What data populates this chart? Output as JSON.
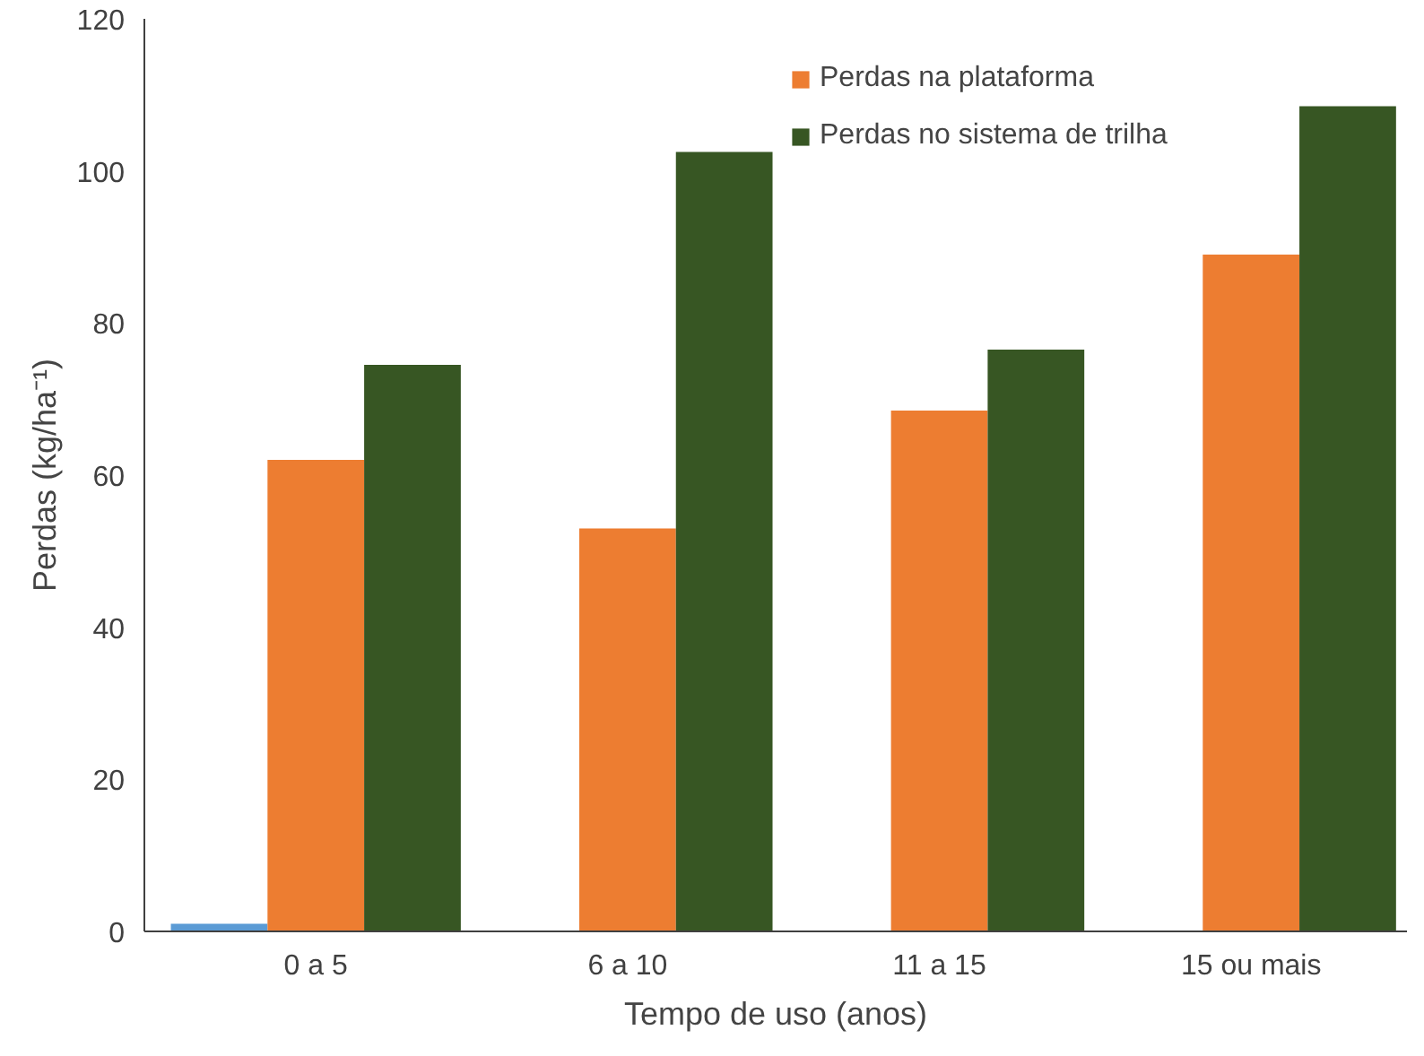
{
  "chart_data": {
    "type": "bar",
    "xlabel": "Tempo de uso (anos)",
    "ylabel": "Perdas (kg/ha⁻¹)",
    "categories": [
      "0 a 5",
      "6 a 10",
      "11 a 15",
      "15 ou mais"
    ],
    "series": [
      {
        "color": "#5b9bd5",
        "values": [
          1,
          null,
          null,
          null
        ]
      },
      {
        "name": "Perdas na plataforma",
        "color": "#ed7d31",
        "values": [
          62,
          53,
          68.5,
          89
        ]
      },
      {
        "name": "Perdas no sistema de trilha",
        "color": "#375623",
        "values": [
          74.5,
          102.5,
          76.5,
          108.5
        ]
      }
    ],
    "ylim": [
      0,
      120
    ],
    "yticks": [
      0,
      20,
      40,
      60,
      80,
      100,
      120
    ],
    "grid": false,
    "legend": "top right"
  }
}
